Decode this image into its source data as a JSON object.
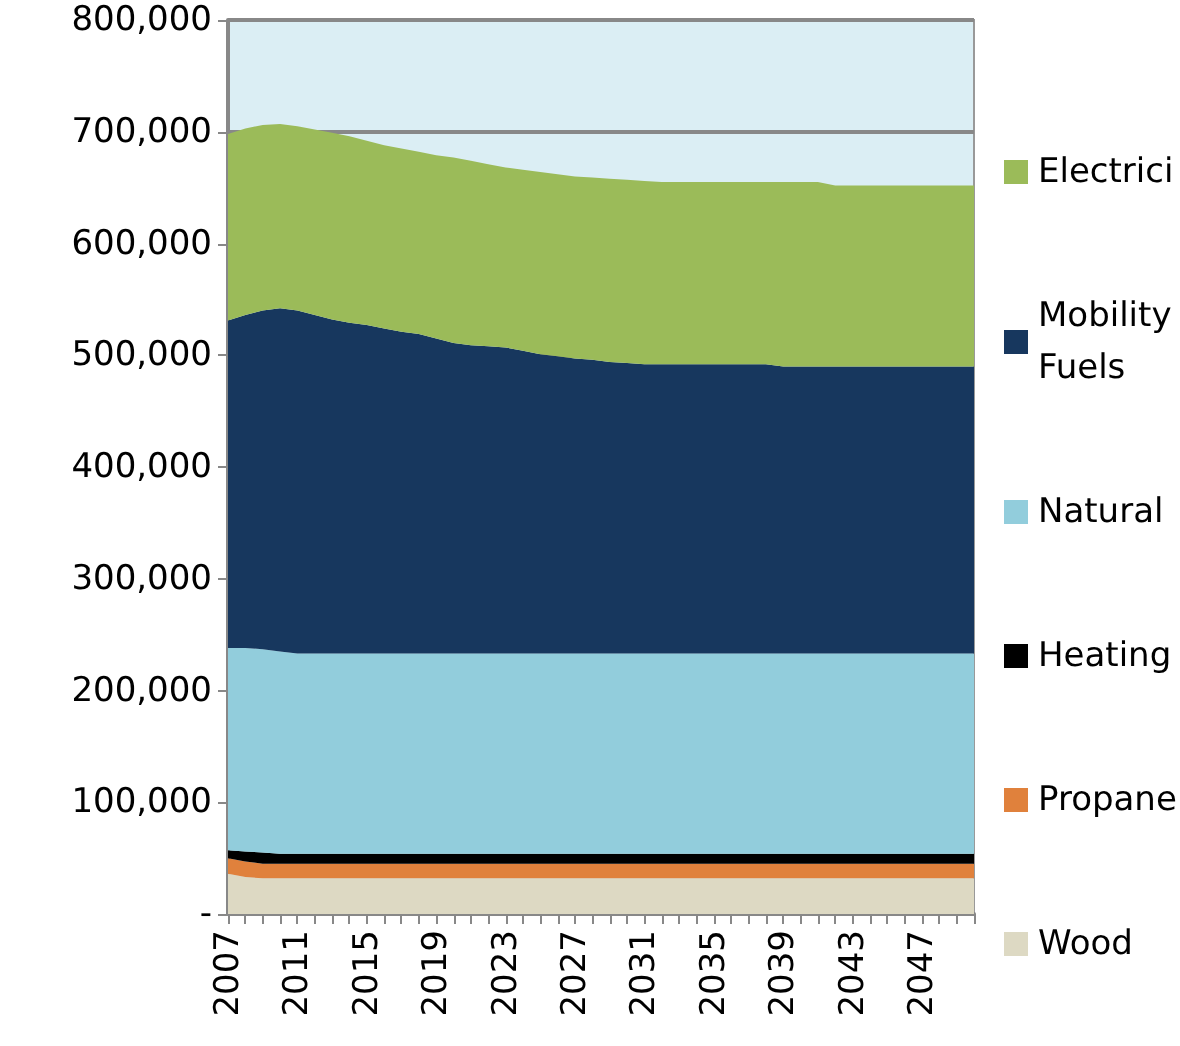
{
  "chart_data": {
    "type": "area",
    "stacked": true,
    "categories": [
      "2007",
      null,
      null,
      null,
      "2011",
      null,
      null,
      null,
      "2015",
      null,
      null,
      null,
      "2019",
      null,
      null,
      null,
      "2023",
      null,
      null,
      null,
      "2027",
      null,
      null,
      null,
      "2031",
      null,
      null,
      null,
      "2035",
      null,
      null,
      null,
      "2039",
      null,
      null,
      null,
      "2043",
      null,
      null,
      null,
      "2047",
      null,
      null,
      null
    ],
    "ylim": [
      0,
      800000
    ],
    "yticks": [
      {
        "value": 0,
        "label": "-"
      },
      {
        "value": 100000,
        "label": "100,000"
      },
      {
        "value": 200000,
        "label": "200,000"
      },
      {
        "value": 300000,
        "label": "300,000"
      },
      {
        "value": 400000,
        "label": "400,000"
      },
      {
        "value": 500000,
        "label": "500,000"
      },
      {
        "value": 600000,
        "label": "600,000"
      },
      {
        "value": 700000,
        "label": "700,000"
      },
      {
        "value": 800000,
        "label": "800,000"
      }
    ],
    "grid": "y",
    "legend": "right",
    "series": [
      {
        "name": "Wood",
        "color": "#ddd9c3",
        "values": [
          36000,
          33000,
          32000,
          32000,
          32000,
          32000,
          32000,
          32000,
          32000,
          32000,
          32000,
          32000,
          32000,
          32000,
          32000,
          32000,
          32000,
          32000,
          32000,
          32000,
          32000,
          32000,
          32000,
          32000,
          32000,
          32000,
          32000,
          32000,
          32000,
          32000,
          32000,
          32000,
          32000,
          32000,
          32000,
          32000,
          32000,
          32000,
          32000,
          32000,
          32000,
          32000,
          32000,
          32000
        ]
      },
      {
        "name": "Propane",
        "color": "#e0813c",
        "values": [
          14000,
          14000,
          13000,
          13000,
          13000,
          13000,
          13000,
          13000,
          13000,
          13000,
          13000,
          13000,
          13000,
          13000,
          13000,
          13000,
          13000,
          13000,
          13000,
          13000,
          13000,
          13000,
          13000,
          13000,
          13000,
          13000,
          13000,
          13000,
          13000,
          13000,
          13000,
          13000,
          13000,
          13000,
          13000,
          13000,
          13000,
          13000,
          13000,
          13000,
          13000,
          13000,
          13000,
          13000
        ]
      },
      {
        "name": "Heating",
        "color": "#000000",
        "values": [
          7000,
          9000,
          10000,
          9000,
          9000,
          9000,
          9000,
          9000,
          9000,
          9000,
          9000,
          9000,
          9000,
          9000,
          9000,
          9000,
          9000,
          9000,
          9000,
          9000,
          9000,
          9000,
          9000,
          9000,
          9000,
          9000,
          9000,
          9000,
          9000,
          9000,
          9000,
          9000,
          9000,
          9000,
          9000,
          9000,
          9000,
          9000,
          9000,
          9000,
          9000,
          9000,
          9000,
          9000
        ]
      },
      {
        "name": "Natural",
        "color": "#92cddc",
        "values": [
          181000,
          182000,
          182000,
          181000,
          179000,
          179000,
          179000,
          179000,
          179000,
          179000,
          179000,
          179000,
          179000,
          179000,
          179000,
          179000,
          179000,
          179000,
          179000,
          179000,
          179000,
          179000,
          179000,
          179000,
          179000,
          179000,
          179000,
          179000,
          179000,
          179000,
          179000,
          179000,
          179000,
          179000,
          179000,
          179000,
          179000,
          179000,
          179000,
          179000,
          179000,
          179000,
          179000,
          179000
        ]
      },
      {
        "name": "Mobility Fuels",
        "color": "#17375e",
        "values": [
          293000,
          298000,
          303000,
          307000,
          307000,
          303000,
          299000,
          296000,
          294000,
          291000,
          288000,
          286000,
          282000,
          278000,
          276000,
          275000,
          274000,
          271000,
          268000,
          266000,
          264000,
          263000,
          261000,
          260000,
          259000,
          259000,
          259000,
          259000,
          259000,
          259000,
          259000,
          259000,
          257000,
          257000,
          257000,
          257000,
          257000,
          257000,
          257000,
          257000,
          257000,
          257000,
          257000,
          257000
        ]
      },
      {
        "name": "Electrici",
        "color": "#9bbb59",
        "values": [
          167000,
          167000,
          166000,
          165000,
          165000,
          166000,
          167000,
          167000,
          165000,
          164000,
          164000,
          163000,
          164000,
          166000,
          165000,
          163000,
          161000,
          162000,
          163000,
          163000,
          163000,
          163000,
          164000,
          164000,
          164000,
          163000,
          163000,
          163000,
          163000,
          163000,
          163000,
          163000,
          165000,
          165000,
          165000,
          162000,
          162000,
          162000,
          162000,
          162000,
          162000,
          162000,
          162000,
          162000
        ]
      }
    ]
  }
}
